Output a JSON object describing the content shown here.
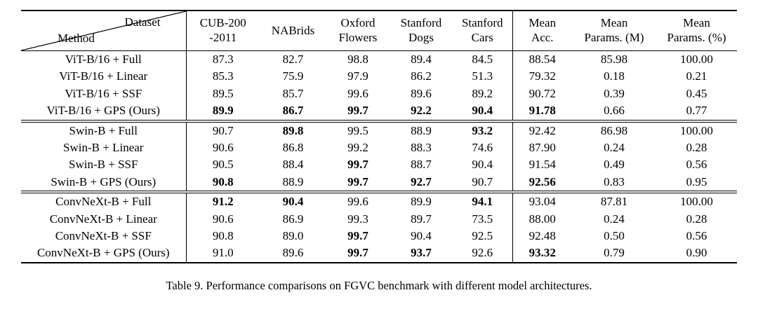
{
  "caption": "Table 9. Performance comparisons on FGVC benchmark with different model architectures.",
  "table": {
    "corner": {
      "dataset_label": "Dataset",
      "method_label": "Method"
    },
    "columns": [
      {
        "name": "cub-200-2011",
        "lines": [
          "CUB-200",
          "-2011"
        ]
      },
      {
        "name": "nabrids",
        "lines": [
          "NABrids"
        ]
      },
      {
        "name": "oxford-flowers",
        "lines": [
          "Oxford",
          "Flowers"
        ]
      },
      {
        "name": "stanford-dogs",
        "lines": [
          "Stanford",
          "Dogs"
        ]
      },
      {
        "name": "stanford-cars",
        "lines": [
          "Stanford",
          "Cars"
        ]
      },
      {
        "name": "mean-acc",
        "lines": [
          "Mean",
          "Acc."
        ]
      },
      {
        "name": "mean-params-m",
        "lines": [
          "Mean",
          "Params. (M)"
        ]
      },
      {
        "name": "mean-params-pct",
        "lines": [
          "Mean",
          "Params. (%)"
        ]
      }
    ],
    "groups": [
      {
        "rows": [
          {
            "method": "ViT-B/16 + Full",
            "values": [
              "87.3",
              "82.7",
              "98.8",
              "89.4",
              "84.5",
              "88.54",
              "85.98",
              "100.00"
            ],
            "bold": []
          },
          {
            "method": "ViT-B/16 + Linear",
            "values": [
              "85.3",
              "75.9",
              "97.9",
              "86.2",
              "51.3",
              "79.32",
              "0.18",
              "0.21"
            ],
            "bold": []
          },
          {
            "method": "ViT-B/16 + SSF",
            "values": [
              "89.5",
              "85.7",
              "99.6",
              "89.6",
              "89.2",
              "90.72",
              "0.39",
              "0.45"
            ],
            "bold": []
          },
          {
            "method": "ViT-B/16 + GPS (Ours)",
            "values": [
              "89.9",
              "86.7",
              "99.7",
              "92.2",
              "90.4",
              "91.78",
              "0.66",
              "0.77"
            ],
            "bold": [
              0,
              1,
              2,
              3,
              4,
              5
            ]
          }
        ]
      },
      {
        "rows": [
          {
            "method": "Swin-B + Full",
            "values": [
              "90.7",
              "89.8",
              "99.5",
              "88.9",
              "93.2",
              "92.42",
              "86.98",
              "100.00"
            ],
            "bold": [
              1,
              4
            ]
          },
          {
            "method": "Swin-B + Linear",
            "values": [
              "90.6",
              "86.8",
              "99.2",
              "88.3",
              "74.6",
              "87.90",
              "0.24",
              "0.28"
            ],
            "bold": []
          },
          {
            "method": "Swin-B + SSF",
            "values": [
              "90.5",
              "88.4",
              "99.7",
              "88.7",
              "90.4",
              "91.54",
              "0.49",
              "0.56"
            ],
            "bold": [
              2
            ]
          },
          {
            "method": "Swin-B + GPS (Ours)",
            "values": [
              "90.8",
              "88.9",
              "99.7",
              "92.7",
              "90.7",
              "92.56",
              "0.83",
              "0.95"
            ],
            "bold": [
              0,
              2,
              3,
              5
            ]
          }
        ]
      },
      {
        "rows": [
          {
            "method": "ConvNeXt-B + Full",
            "values": [
              "91.2",
              "90.4",
              "99.6",
              "89.9",
              "94.1",
              "93.04",
              "87.81",
              "100.00"
            ],
            "bold": [
              0,
              1,
              4
            ]
          },
          {
            "method": "ConvNeXt-B + Linear",
            "values": [
              "90.6",
              "86.9",
              "99.3",
              "89.7",
              "73.5",
              "88.00",
              "0.24",
              "0.28"
            ],
            "bold": []
          },
          {
            "method": "ConvNeXt-B + SSF",
            "values": [
              "90.8",
              "89.0",
              "99.7",
              "90.4",
              "92.5",
              "92.48",
              "0.50",
              "0.56"
            ],
            "bold": [
              2
            ]
          },
          {
            "method": "ConvNeXt-B + GPS (Ours)",
            "values": [
              "91.0",
              "89.6",
              "99.7",
              "93.7",
              "92.6",
              "93.32",
              "0.79",
              "0.90"
            ],
            "bold": [
              2,
              3,
              5
            ]
          }
        ]
      }
    ]
  }
}
